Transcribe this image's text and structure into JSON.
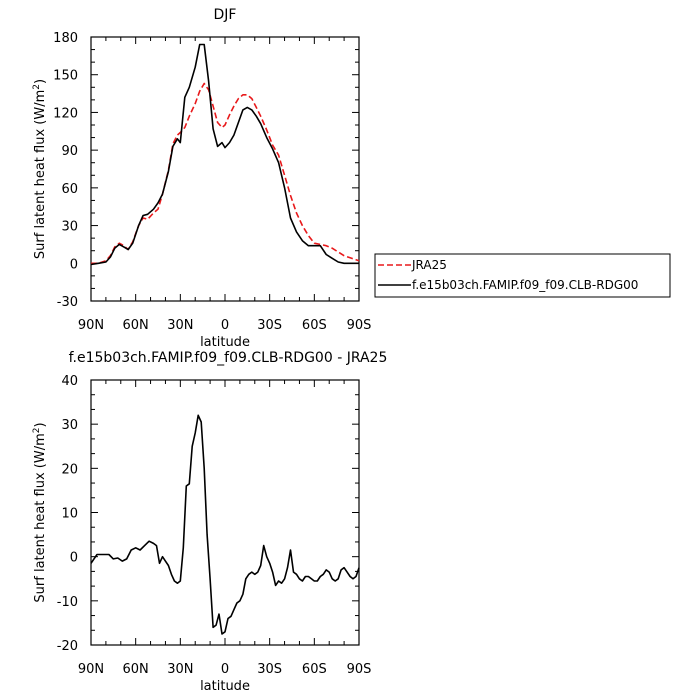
{
  "chart_data": [
    {
      "type": "line",
      "title": "DJF",
      "xlabel": "latitude",
      "ylabel": "Surf latent heat flux (W/m",
      "ylabel_sup": "2",
      "ylabel_end": ")",
      "x_ticks": [
        "90N",
        "60N",
        "30N",
        "0",
        "30S",
        "60S",
        "90S"
      ],
      "x_tick_values": [
        -90,
        -60,
        -30,
        0,
        30,
        60,
        90
      ],
      "xlim": [
        -90,
        90
      ],
      "ylim": [
        -30,
        180
      ],
      "y_ticks": [
        -30,
        0,
        30,
        60,
        90,
        120,
        150,
        180
      ],
      "legend_position": "right",
      "series": [
        {
          "name": "JRA25",
          "color": "#e8191b",
          "dash": "dashed",
          "x": [
            -90,
            -85,
            -80,
            -77,
            -74,
            -71,
            -68,
            -65,
            -62,
            -58,
            -55,
            -52,
            -48,
            -45,
            -42,
            -38,
            -35,
            -32,
            -30,
            -27,
            -24,
            -20,
            -17,
            -14,
            -11,
            -8,
            -5,
            -2,
            0,
            3,
            6,
            9,
            12,
            15,
            18,
            21,
            24,
            28,
            32,
            36,
            40,
            44,
            48,
            52,
            56,
            60,
            64,
            68,
            72,
            76,
            80,
            85,
            90
          ],
          "y": [
            0,
            0,
            2,
            6,
            13,
            16,
            14,
            11,
            17,
            30,
            36,
            35,
            40,
            43,
            55,
            74,
            95,
            102,
            104,
            108,
            117,
            127,
            137,
            143,
            138,
            125,
            112,
            108,
            110,
            118,
            125,
            131,
            134,
            134,
            131,
            124,
            117,
            106,
            94,
            86,
            70,
            54,
            40,
            30,
            22,
            16,
            15,
            14,
            12,
            9,
            6,
            4,
            2
          ]
        },
        {
          "name": "f.e15b03ch.FAMIP.f09_f09.CLB-RDG00",
          "color": "#000000",
          "dash": "solid",
          "x": [
            -90,
            -85,
            -80,
            -77,
            -74,
            -71,
            -68,
            -65,
            -62,
            -58,
            -55,
            -52,
            -48,
            -45,
            -42,
            -38,
            -35,
            -32,
            -30,
            -27,
            -24,
            -20,
            -17,
            -14,
            -11,
            -8,
            -5,
            -2,
            0,
            3,
            6,
            9,
            12,
            15,
            18,
            21,
            24,
            28,
            32,
            36,
            40,
            44,
            48,
            52,
            56,
            60,
            64,
            68,
            72,
            76,
            80,
            85,
            90
          ],
          "y": [
            -1,
            0,
            1,
            5,
            12,
            15,
            13,
            11,
            16,
            30,
            38,
            39,
            43,
            48,
            55,
            73,
            93,
            99,
            96,
            132,
            140,
            156,
            174,
            174,
            145,
            107,
            93,
            96,
            92,
            96,
            102,
            112,
            122,
            124,
            122,
            117,
            111,
            100,
            91,
            80,
            60,
            36,
            25,
            18,
            14,
            14,
            14,
            7,
            4,
            1,
            0,
            0,
            0
          ]
        }
      ]
    },
    {
      "type": "line",
      "title": "f.e15b03ch.FAMIP.f09_f09.CLB-RDG00  -  JRA25",
      "xlabel": "latitude",
      "ylabel": "Surf latent heat flux (W/m",
      "ylabel_sup": "2",
      "ylabel_end": ")",
      "x_ticks": [
        "90N",
        "60N",
        "30N",
        "0",
        "30S",
        "60S",
        "90S"
      ],
      "x_tick_values": [
        -90,
        -60,
        -30,
        0,
        30,
        60,
        90
      ],
      "xlim": [
        -90,
        90
      ],
      "ylim": [
        -20,
        40
      ],
      "y_ticks": [
        -20,
        -10,
        0,
        10,
        20,
        30,
        40
      ],
      "series": [
        {
          "color": "#000000",
          "dash": "solid",
          "x": [
            -90,
            -86,
            -82,
            -78,
            -75,
            -72,
            -69,
            -66,
            -63,
            -60,
            -57,
            -54,
            -51,
            -48,
            -46,
            -44,
            -42,
            -40,
            -38,
            -36,
            -34,
            -32,
            -30,
            -28,
            -26,
            -24,
            -22,
            -20,
            -18,
            -16,
            -14,
            -12,
            -10,
            -8,
            -6,
            -4,
            -2,
            0,
            2,
            4,
            6,
            8,
            10,
            12,
            14,
            16,
            18,
            20,
            22,
            24,
            26,
            28,
            30,
            32,
            34,
            36,
            38,
            40,
            42,
            44,
            46,
            48,
            50,
            52,
            54,
            56,
            58,
            60,
            62,
            64,
            66,
            68,
            70,
            72,
            74,
            76,
            78,
            80,
            82,
            84,
            86,
            88,
            90
          ],
          "y": [
            -1.5,
            0.5,
            0.5,
            0.5,
            -0.5,
            -0.3,
            -1,
            -0.5,
            1.5,
            2,
            1.5,
            2.5,
            3.5,
            3,
            2.5,
            -1.5,
            0,
            -1,
            -2,
            -4,
            -5.5,
            -6,
            -5.5,
            2,
            16,
            16.5,
            25,
            28,
            32,
            30.5,
            20,
            5,
            -5,
            -16,
            -15.5,
            -13,
            -17.5,
            -17,
            -14,
            -13.5,
            -12,
            -10.5,
            -10,
            -8.5,
            -5,
            -4,
            -3.5,
            -4,
            -3.5,
            -2,
            2.5,
            0,
            -1.5,
            -3.5,
            -6.5,
            -5.5,
            -6,
            -5,
            -2.5,
            1.5,
            -3.5,
            -4,
            -5,
            -5.5,
            -4.5,
            -4.5,
            -5,
            -5.5,
            -5.5,
            -4.5,
            -4,
            -3,
            -3.5,
            -5,
            -5.5,
            -5,
            -3,
            -2.5,
            -3.5,
            -4.5,
            -5,
            -4.5,
            -2.5
          ]
        }
      ]
    }
  ]
}
